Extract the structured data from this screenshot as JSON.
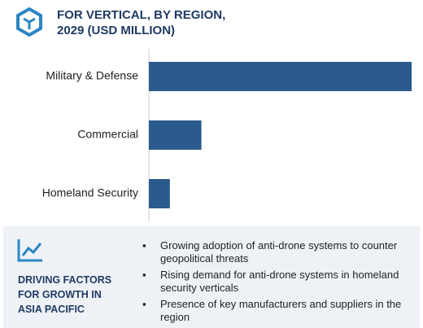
{
  "chart_data": {
    "type": "bar",
    "orientation": "horizontal",
    "title": "FOR VERTICAL, BY REGION, 2029 (USD MILLION)",
    "categories": [
      "Military & Defense",
      "Commercial",
      "Homeland Security"
    ],
    "values": [
      100,
      20,
      8
    ],
    "color": "#2b5a8c",
    "xlim": [
      0,
      100
    ]
  },
  "driving_factors": {
    "heading": "DRIVING FACTORS FOR GROWTH IN ASIA PACIFIC",
    "bullets": [
      "Growing adoption of anti-drone systems to counter geopolitical threats",
      "Rising demand for anti-drone systems in homeland security verticals",
      "Presence of key manufacturers and suppliers in the region"
    ]
  }
}
